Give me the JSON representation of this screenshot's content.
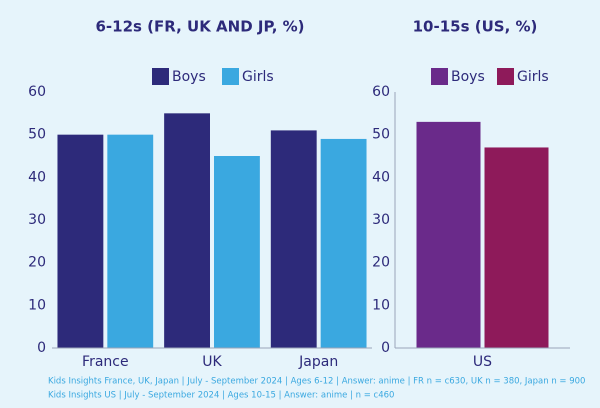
{
  "chart_data": [
    {
      "type": "bar",
      "title": "6-12s (FR, UK AND JP, %)",
      "categories": [
        "France",
        "UK",
        "Japan"
      ],
      "series": [
        {
          "name": "Boys",
          "color": "#2d2a7a",
          "values": [
            50,
            55,
            51
          ]
        },
        {
          "name": "Girls",
          "color": "#3aa8e0",
          "values": [
            50,
            45,
            49
          ]
        }
      ],
      "ylim": [
        0,
        60
      ],
      "yticks": [
        0,
        10,
        20,
        30,
        40,
        50,
        60
      ],
      "legend": "top"
    },
    {
      "type": "bar",
      "title": "10-15s (US, %)",
      "categories": [
        "US"
      ],
      "series": [
        {
          "name": "Boys",
          "color": "#6a2a8a",
          "values": [
            53
          ]
        },
        {
          "name": "Girls",
          "color": "#8e1a5a",
          "values": [
            47
          ]
        }
      ],
      "ylim": [
        0,
        60
      ],
      "yticks": [
        0,
        10,
        20,
        30,
        40,
        50,
        60
      ],
      "legend": "top"
    }
  ],
  "footnotes": [
    "Kids Insights France, UK, Japan | July - September 2024 | Ages 6-12 | Answer: anime | FR n = c630, UK n = 380, Japan n = 900",
    "Kids Insights US | July - September 2024 | Ages 10-15 | Answer: anime | n = c460"
  ]
}
